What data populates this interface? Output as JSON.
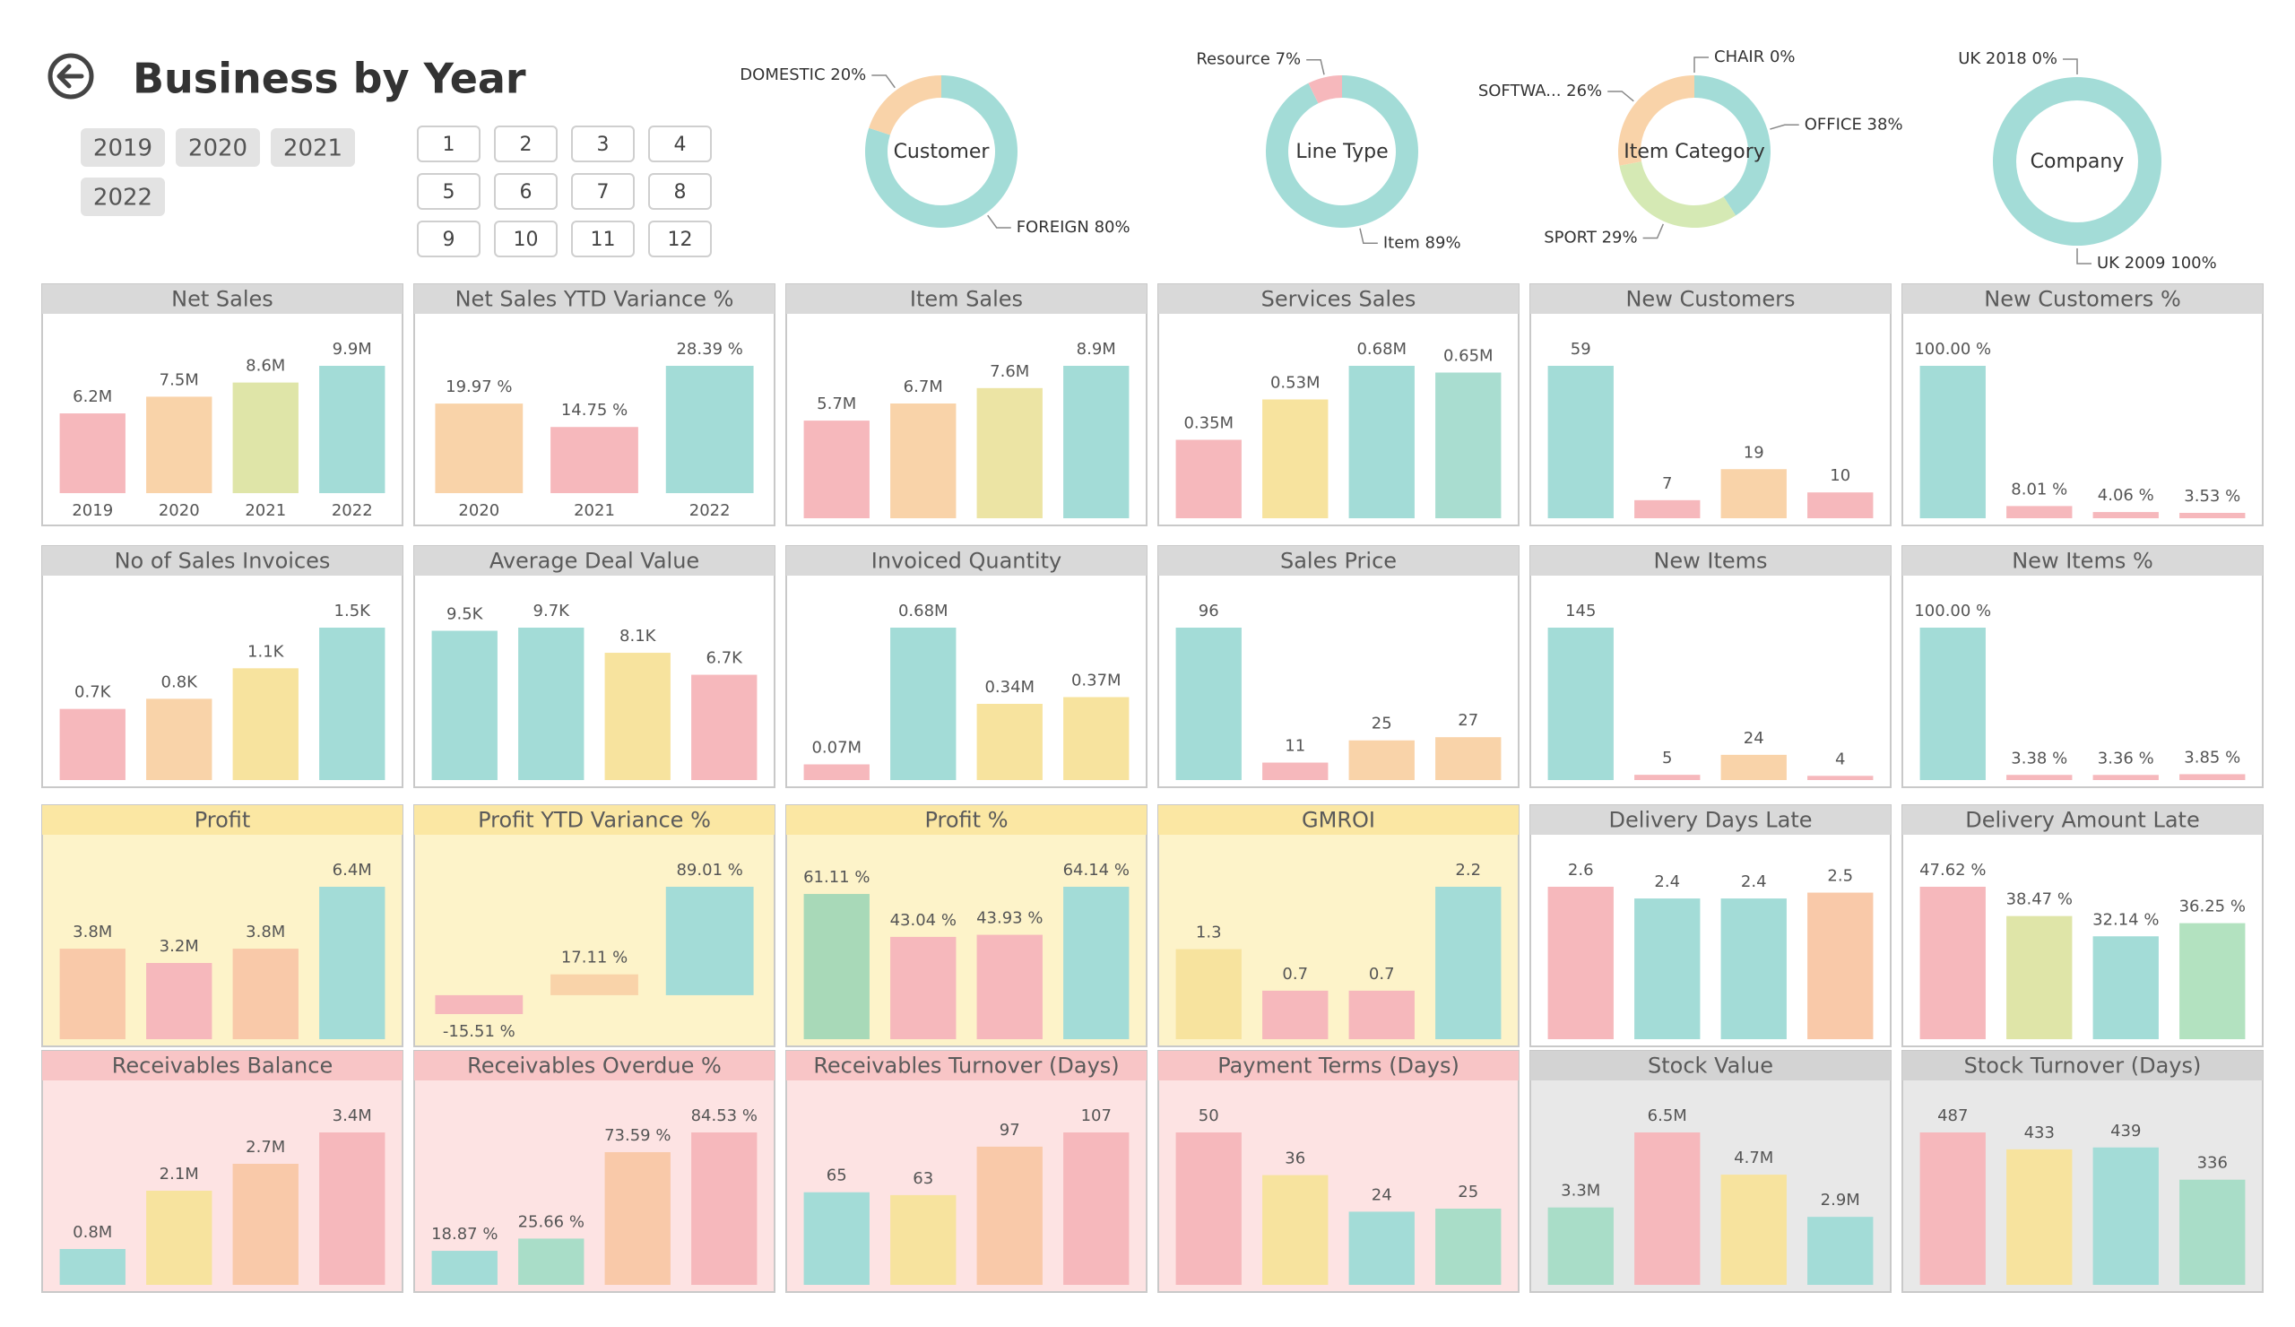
{
  "header": {
    "title": "Business by Year",
    "years": [
      "2019",
      "2020",
      "2021",
      "2022"
    ],
    "months": [
      "1",
      "2",
      "3",
      "4",
      "5",
      "6",
      "7",
      "8",
      "9",
      "10",
      "11",
      "12"
    ]
  },
  "chart_data": [
    {
      "type": "bar",
      "title": "Net Sales",
      "categories": [
        "2019",
        "2020",
        "2021",
        "2022"
      ],
      "values": [
        6200000,
        7500000,
        8600000,
        9900000
      ],
      "value_labels": [
        "6.2M",
        "7.5M",
        "8.6M",
        "9.9M"
      ],
      "colors": [
        "#f6b8bc",
        "#f9d3a9",
        "#dfe5a8",
        "#a3dcd7"
      ],
      "background": "#ffffff",
      "header_color": "#d9d9d9"
    },
    {
      "type": "bar",
      "title": "Net Sales YTD Variance %",
      "categories": [
        "2020",
        "2021",
        "2022"
      ],
      "values": [
        19.97,
        14.75,
        28.39
      ],
      "value_labels": [
        "19.97 %",
        "14.75 %",
        "28.39 %"
      ],
      "colors": [
        "#f9d3a9",
        "#f6b8bc",
        "#a3dcd7"
      ],
      "background": "#ffffff",
      "header_color": "#d9d9d9"
    },
    {
      "type": "bar",
      "title": "Item Sales",
      "values": [
        5700000,
        6700000,
        7600000,
        8900000
      ],
      "value_labels": [
        "5.7M",
        "6.7M",
        "7.6M",
        "8.9M"
      ],
      "colors": [
        "#f6b8bc",
        "#f9d3a9",
        "#ece4a4",
        "#a3dcd7"
      ],
      "background": "#ffffff",
      "header_color": "#d9d9d9"
    },
    {
      "type": "bar",
      "title": "Services Sales",
      "values": [
        350000,
        530000,
        680000,
        650000
      ],
      "value_labels": [
        "0.35M",
        "0.53M",
        "0.68M",
        "0.65M"
      ],
      "colors": [
        "#f6b8bc",
        "#f7e39e",
        "#a3dcd7",
        "#a9ddd0"
      ],
      "background": "#ffffff",
      "header_color": "#d9d9d9"
    },
    {
      "type": "bar",
      "title": "New Customers",
      "values": [
        59,
        7,
        19,
        10
      ],
      "colors": [
        "#a3dcd7",
        "#f6b8bc",
        "#f9d3a9",
        "#f6b8bc"
      ],
      "background": "#ffffff",
      "header_color": "#d9d9d9"
    },
    {
      "type": "bar",
      "title": "New Customers %",
      "values": [
        100,
        8.01,
        4.06,
        3.53
      ],
      "value_labels": [
        "100.00 %",
        "8.01 %",
        "4.06 %",
        "3.53 %"
      ],
      "colors": [
        "#a3dcd7",
        "#f6b8bc",
        "#f6b8bc",
        "#f6b8bc"
      ],
      "background": "#ffffff",
      "header_color": "#d9d9d9"
    },
    {
      "type": "bar",
      "title": "No of Sales Invoices",
      "values": [
        700,
        800,
        1100,
        1500
      ],
      "value_labels": [
        "0.7K",
        "0.8K",
        "1.1K",
        "1.5K"
      ],
      "colors": [
        "#f6b8bc",
        "#f9d3a9",
        "#f7e39e",
        "#a3dcd7"
      ],
      "background": "#ffffff",
      "header_color": "#d9d9d9"
    },
    {
      "type": "bar",
      "title": "Average Deal Value",
      "values": [
        9500,
        9700,
        8100,
        6700
      ],
      "value_labels": [
        "9.5K",
        "9.7K",
        "8.1K",
        "6.7K"
      ],
      "colors": [
        "#a3dcd7",
        "#a3dcd7",
        "#f7e39e",
        "#f6b8bc"
      ],
      "background": "#ffffff",
      "header_color": "#d9d9d9"
    },
    {
      "type": "bar",
      "title": "Invoiced Quantity",
      "values": [
        70000,
        680000,
        340000,
        370000
      ],
      "value_labels": [
        "0.07M",
        "0.68M",
        "0.34M",
        "0.37M"
      ],
      "colors": [
        "#f6b8bc",
        "#a3dcd7",
        "#f7e39e",
        "#f7e39e"
      ],
      "background": "#ffffff",
      "header_color": "#d9d9d9"
    },
    {
      "type": "bar",
      "title": "Sales Price",
      "values": [
        96,
        11,
        25,
        27
      ],
      "colors": [
        "#a3dcd7",
        "#f6b8bc",
        "#f9d3a9",
        "#f9d3a9"
      ],
      "background": "#ffffff",
      "header_color": "#d9d9d9"
    },
    {
      "type": "bar",
      "title": "New Items",
      "values": [
        145,
        5,
        24,
        4
      ],
      "colors": [
        "#a3dcd7",
        "#f6b8bc",
        "#f9d3a9",
        "#f6b8bc"
      ],
      "background": "#ffffff",
      "header_color": "#d9d9d9"
    },
    {
      "type": "bar",
      "title": "New Items %",
      "values": [
        100,
        3.38,
        3.36,
        3.85
      ],
      "value_labels": [
        "100.00 %",
        "3.38 %",
        "3.36 %",
        "3.85 %"
      ],
      "colors": [
        "#a3dcd7",
        "#f6b8bc",
        "#f6b8bc",
        "#f6b8bc"
      ],
      "background": "#ffffff",
      "header_color": "#d9d9d9"
    },
    {
      "type": "bar",
      "title": "Profit",
      "values": [
        3800000,
        3200000,
        3800000,
        6400000
      ],
      "value_labels": [
        "3.8M",
        "3.2M",
        "3.8M",
        "6.4M"
      ],
      "colors": [
        "#f9c9a9",
        "#f6b8bc",
        "#f9c9a9",
        "#a3dcd7"
      ],
      "background": "#fdf3c9",
      "header_color": "#fbe7a3"
    },
    {
      "type": "bar",
      "title": "Profit YTD Variance %",
      "values": [
        -15.51,
        17.11,
        89.01
      ],
      "value_labels": [
        "-15.51 %",
        "17.11 %",
        "89.01 %"
      ],
      "colors": [
        "#f6b8bc",
        "#f9d3a9",
        "#a3dcd7"
      ],
      "background": "#fdf3c9",
      "header_color": "#fbe7a3"
    },
    {
      "type": "bar",
      "title": "Profit %",
      "values": [
        61.11,
        43.04,
        43.93,
        64.14
      ],
      "value_labels": [
        "61.11 %",
        "43.04 %",
        "43.93 %",
        "64.14 %"
      ],
      "colors": [
        "#a8d9b8",
        "#f6b8bc",
        "#f6b8bc",
        "#a3dcd7"
      ],
      "background": "#fdf3c9",
      "header_color": "#fbe7a3"
    },
    {
      "type": "bar",
      "title": "GMROI",
      "values": [
        1.3,
        0.7,
        0.7,
        2.2
      ],
      "colors": [
        "#f7e39e",
        "#f6b8bc",
        "#f6b8bc",
        "#a3dcd7"
      ],
      "background": "#fdf3c9",
      "header_color": "#fbe7a3"
    },
    {
      "type": "bar",
      "title": "Delivery Days Late",
      "values": [
        2.6,
        2.4,
        2.4,
        2.5
      ],
      "colors": [
        "#f6b8bc",
        "#a3dcd7",
        "#a3dcd7",
        "#f9c9a9"
      ],
      "background": "#ffffff",
      "header_color": "#d9d9d9"
    },
    {
      "type": "bar",
      "title": "Delivery Amount Late",
      "values": [
        47.62,
        38.47,
        32.14,
        36.25
      ],
      "value_labels": [
        "47.62 %",
        "38.47 %",
        "32.14 %",
        "36.25 %"
      ],
      "colors": [
        "#f6b8bc",
        "#dfe5a8",
        "#a3dcd7",
        "#b3e2c0"
      ],
      "background": "#ffffff",
      "header_color": "#d9d9d9"
    },
    {
      "type": "bar",
      "title": "Receivables Balance",
      "values": [
        800000,
        2100000,
        2700000,
        3400000
      ],
      "value_labels": [
        "0.8M",
        "2.1M",
        "2.7M",
        "3.4M"
      ],
      "colors": [
        "#a3dcd7",
        "#f7e39e",
        "#f9c9a9",
        "#f6b8bc"
      ],
      "background": "#fde3e3",
      "header_color": "#f8c5c6"
    },
    {
      "type": "bar",
      "title": "Receivables Overdue %",
      "values": [
        18.87,
        25.66,
        73.59,
        84.53
      ],
      "value_labels": [
        "18.87 %",
        "25.66 %",
        "73.59 %",
        "84.53 %"
      ],
      "colors": [
        "#a3dcd7",
        "#a9ddc8",
        "#f9c9a9",
        "#f6b8bc"
      ],
      "background": "#fde3e3",
      "header_color": "#f8c5c6"
    },
    {
      "type": "bar",
      "title": "Receivables Turnover (Days)",
      "values": [
        65,
        63,
        97,
        107
      ],
      "colors": [
        "#a3dcd7",
        "#f7e39e",
        "#f9c9a9",
        "#f6b8bc"
      ],
      "background": "#fde3e3",
      "header_color": "#f8c5c6"
    },
    {
      "type": "bar",
      "title": "Payment Terms (Days)",
      "values": [
        50,
        36,
        24,
        25
      ],
      "colors": [
        "#f6b8bc",
        "#f7e39e",
        "#a3dcd7",
        "#a9ddc8"
      ],
      "background": "#fde3e3",
      "header_color": "#f8c5c6"
    },
    {
      "type": "bar",
      "title": "Stock Value",
      "values": [
        3300000,
        6500000,
        4700000,
        2900000
      ],
      "value_labels": [
        "3.3M",
        "6.5M",
        "4.7M",
        "2.9M"
      ],
      "colors": [
        "#a9ddc8",
        "#f6b8bc",
        "#f7e39e",
        "#a3dcd7"
      ],
      "background": "#e8e8e8",
      "header_color": "#d3d3d3"
    },
    {
      "type": "bar",
      "title": "Stock Turnover (Days)",
      "values": [
        487,
        433,
        439,
        336
      ],
      "colors": [
        "#f6b8bc",
        "#f7e39e",
        "#a3dcd7",
        "#a9ddc8"
      ],
      "background": "#e8e8e8",
      "header_color": "#d3d3d3"
    },
    {
      "type": "pie",
      "title": "Customer",
      "categories": [
        "FOREIGN",
        "DOMESTIC"
      ],
      "values": [
        80,
        20
      ],
      "value_labels": [
        "80%",
        "20%"
      ],
      "colors": [
        "#a3dcd7",
        "#f9d3a9"
      ]
    },
    {
      "type": "pie",
      "title": "Line Type",
      "categories": [
        "Item",
        "Resource"
      ],
      "values": [
        89,
        7
      ],
      "value_labels": [
        "89%",
        "7%"
      ],
      "colors": [
        "#a3dcd7",
        "#f6b8bc"
      ]
    },
    {
      "type": "pie",
      "title": "Item Category",
      "categories": [
        "OFFICE",
        "SPORT",
        "SOFTWA...",
        "CHAIR"
      ],
      "values": [
        38,
        29,
        26,
        0
      ],
      "value_labels": [
        "38%",
        "29%",
        "26%",
        "0%"
      ],
      "colors": [
        "#a3dcd7",
        "#d5e9b4",
        "#f9d3a9",
        "#f6b8bc"
      ]
    },
    {
      "type": "pie",
      "title": "Company",
      "categories": [
        "UK 2009",
        "UK 2018"
      ],
      "values": [
        100,
        0
      ],
      "value_labels": [
        "100%",
        "0%"
      ],
      "colors": [
        "#a3dcd7",
        "#f6b8bc"
      ]
    }
  ]
}
